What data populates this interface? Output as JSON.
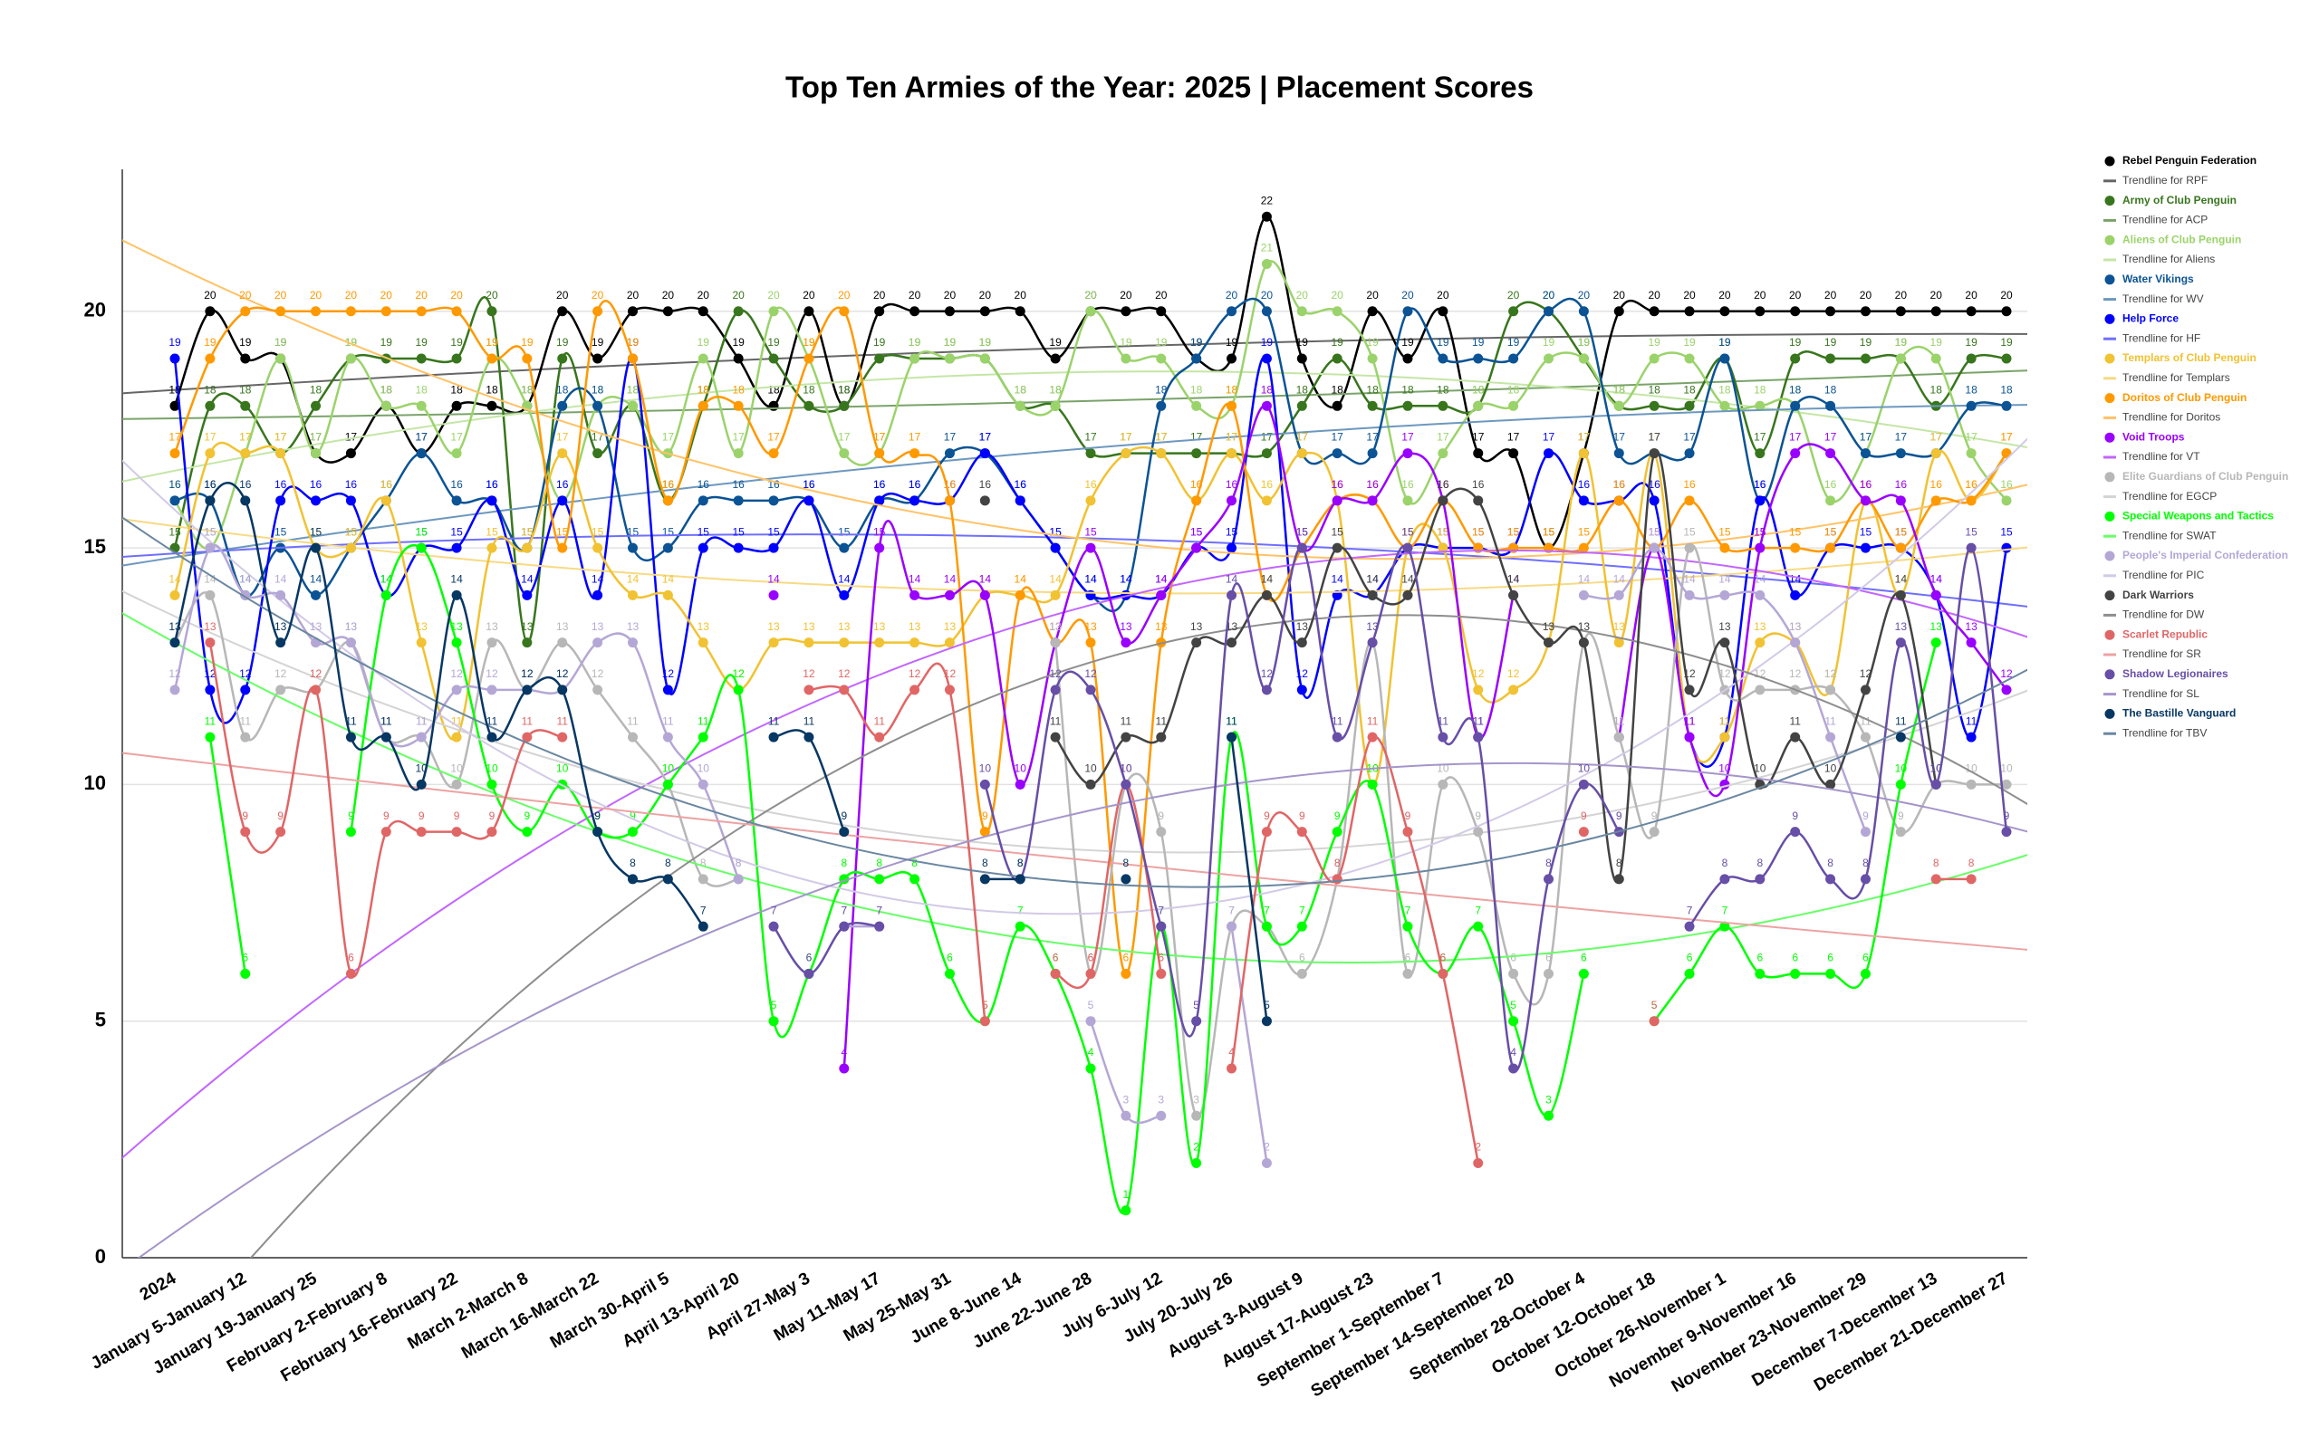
{
  "chart_data": {
    "type": "line",
    "title": "Top Ten Armies of the Year: 2025 | Placement Scores",
    "categories": [
      "2024",
      null,
      "January 5-January 12",
      null,
      "January 19-January 25",
      null,
      "February 2-February 8",
      null,
      "February 16-February 22",
      null,
      "March 2-March 8",
      null,
      "March 16-March 22",
      null,
      "March 30-April 5",
      null,
      "April 13-April 20",
      null,
      "April 27-May 3",
      null,
      "May 11-May 17",
      null,
      "May 25-May 31",
      null,
      "June 8-June 14",
      null,
      "June 22-June 28",
      null,
      "July 6-July 12",
      null,
      "July 20-July 26",
      null,
      "August 3-August 9",
      null,
      "August 17-August 23",
      null,
      "September 1-September 7",
      null,
      "September 14-September 20",
      null,
      "September 28-October 4",
      null,
      "October 12-October 18",
      null,
      "October 26-November 1",
      null,
      "November 9-November 16",
      null,
      "November 23-November 29",
      null,
      "December 7-December 13",
      null,
      "December 21-December 27"
    ],
    "ylim": [
      0,
      23
    ],
    "yticks": [
      0,
      5,
      10,
      15,
      20
    ],
    "grid": true,
    "legend": "right",
    "smooth": true,
    "trendline_degree": 2,
    "series": [
      {
        "name": "Rebel Penguin Federation",
        "color": "#000000",
        "trendline": "Trendline for RPF",
        "trend_color": "#666666",
        "values": [
          18,
          20,
          19,
          19,
          17,
          17,
          18,
          17,
          18,
          18,
          18,
          20,
          19,
          20,
          20,
          20,
          19,
          18,
          20,
          18,
          20,
          20,
          20,
          20,
          20,
          19,
          20,
          20,
          20,
          19,
          19,
          22,
          19,
          18,
          20,
          19,
          20,
          17,
          17,
          15,
          17,
          20,
          20,
          20,
          20,
          20,
          20,
          20,
          20,
          20,
          20,
          20,
          20
        ]
      },
      {
        "name": "Army of Club Penguin",
        "color": "#38761d",
        "trendline": "Trendline for ACP",
        "trend_color": "#7aa36a",
        "values": [
          15,
          18,
          18,
          17,
          18,
          19,
          19,
          19,
          19,
          20,
          13,
          19,
          17,
          18,
          16,
          18,
          20,
          19,
          18,
          18,
          19,
          19,
          19,
          19,
          18,
          18,
          17,
          17,
          17,
          17,
          17,
          17,
          18,
          19,
          18,
          18,
          18,
          18,
          20,
          20,
          19,
          18,
          18,
          18,
          19,
          17,
          19,
          19,
          19,
          19,
          18,
          19,
          19
        ]
      },
      {
        "name": "Aliens of Club Penguin",
        "color": "#9bd36b",
        "trendline": "Trendline for Aliens",
        "trend_color": "#c4e6a6",
        "values": [
          16,
          15,
          17,
          19,
          17,
          19,
          18,
          18,
          17,
          19,
          18,
          16,
          18,
          18,
          17,
          19,
          17,
          20,
          19,
          17,
          17,
          19,
          19,
          19,
          18,
          18,
          20,
          19,
          19,
          18,
          18,
          21,
          20,
          20,
          19,
          16,
          17,
          18,
          18,
          19,
          19,
          18,
          19,
          19,
          18,
          18,
          18,
          16,
          17,
          19,
          19,
          17,
          16
        ]
      },
      {
        "name": "Water Vikings",
        "color": "#0b5394",
        "trendline": "Trendline for WV",
        "trend_color": "#6d98bf",
        "values": [
          16,
          16,
          14,
          15,
          14,
          15,
          16,
          17,
          16,
          16,
          15,
          18,
          18,
          15,
          15,
          16,
          16,
          16,
          16,
          15,
          16,
          16,
          17,
          17,
          16,
          15,
          14,
          14,
          18,
          19,
          20,
          20,
          17,
          17,
          17,
          20,
          19,
          19,
          19,
          20,
          20,
          17,
          17,
          17,
          19,
          16,
          18,
          18,
          17,
          17,
          17,
          18,
          18
        ]
      },
      {
        "name": "Help Force",
        "color": "#0000ff",
        "trendline": "Trendline for HF",
        "trend_color": "#6f6fff",
        "values": [
          19,
          12,
          12,
          16,
          16,
          16,
          14,
          15,
          15,
          16,
          14,
          16,
          14,
          19,
          12,
          15,
          15,
          15,
          16,
          14,
          16,
          16,
          16,
          17,
          16,
          15,
          14,
          14,
          14,
          15,
          15,
          19,
          12,
          14,
          14,
          15,
          15,
          15,
          15,
          17,
          16,
          16,
          16,
          11,
          11,
          16,
          14,
          15,
          15,
          15,
          14,
          11,
          15
        ]
      },
      {
        "name": "Templars of Club Penguin",
        "color": "#f1c232",
        "trendline": "Trendline for Templars",
        "trend_color": "#f7da84",
        "values": [
          14,
          17,
          17,
          17,
          15,
          15,
          16,
          13,
          11,
          15,
          15,
          17,
          15,
          14,
          14,
          13,
          12,
          13,
          13,
          13,
          13,
          13,
          13,
          14,
          14,
          14,
          16,
          17,
          17,
          16,
          17,
          16,
          17,
          16,
          10,
          15,
          15,
          12,
          12,
          13,
          17,
          13,
          17,
          11,
          11,
          13,
          13,
          12,
          16,
          14,
          17,
          16,
          17
        ]
      },
      {
        "name": "Doritos of Club Penguin",
        "color": "#ff9900",
        "trendline": "Trendline for Doritos",
        "trend_color": "#ffc266",
        "values": [
          17,
          19,
          20,
          20,
          20,
          20,
          20,
          20,
          20,
          19,
          19,
          15,
          20,
          19,
          16,
          18,
          18,
          17,
          19,
          20,
          17,
          17,
          16,
          9,
          14,
          13,
          13,
          6,
          13,
          16,
          18,
          14,
          15,
          16,
          16,
          15,
          16,
          15,
          15,
          15,
          15,
          16,
          15,
          16,
          15,
          15,
          15,
          15,
          16,
          15,
          16,
          16,
          17
        ]
      },
      {
        "name": "Void Troops",
        "color": "#9900ff",
        "trendline": "Trendline for VT",
        "trend_color": "#c266ff",
        "values": [
          null,
          null,
          null,
          null,
          null,
          null,
          null,
          null,
          null,
          null,
          null,
          null,
          null,
          null,
          null,
          null,
          null,
          14,
          null,
          4,
          15,
          14,
          14,
          14,
          10,
          13,
          15,
          13,
          14,
          15,
          16,
          18,
          15,
          16,
          16,
          17,
          16,
          11,
          14,
          null,
          null,
          11,
          15,
          11,
          10,
          15,
          17,
          17,
          16,
          16,
          14,
          13,
          12
        ]
      },
      {
        "name": "Elite Guardians of Club Penguin",
        "color": "#b7b7b7",
        "trendline": "Trendline for EGCP",
        "trend_color": "#d4d4d4",
        "values": [
          13,
          14,
          11,
          12,
          12,
          13,
          11,
          11,
          10,
          13,
          12,
          13,
          12,
          11,
          10,
          8,
          8,
          null,
          null,
          null,
          null,
          null,
          null,
          null,
          null,
          13,
          6,
          10,
          9,
          3,
          7,
          7,
          6,
          8,
          13,
          6,
          10,
          9,
          6,
          6,
          13,
          11,
          9,
          15,
          12,
          12,
          12,
          12,
          11,
          9,
          10,
          10,
          10
        ]
      },
      {
        "name": "Special Weapons and Tactics",
        "color": "#00ff00",
        "trendline": "Trendline for SWAT",
        "trend_color": "#66ff66",
        "values": [
          null,
          11,
          6,
          null,
          null,
          9,
          14,
          15,
          13,
          10,
          9,
          10,
          9,
          9,
          10,
          11,
          12,
          5,
          6,
          8,
          8,
          8,
          6,
          5,
          7,
          6,
          4,
          1,
          7,
          2,
          11,
          7,
          7,
          9,
          10,
          7,
          6,
          7,
          5,
          3,
          6,
          null,
          5,
          6,
          7,
          6,
          6,
          6,
          6,
          10,
          13,
          null,
          null
        ]
      },
      {
        "name": "People's Imperial Confederation",
        "color": "#b4a7d6",
        "trendline": "Trendline for PIC",
        "trend_color": "#d2cae6",
        "values": [
          12,
          15,
          14,
          14,
          13,
          13,
          11,
          11,
          12,
          12,
          12,
          12,
          13,
          13,
          11,
          10,
          8,
          null,
          null,
          7,
          7,
          null,
          null,
          null,
          null,
          null,
          5,
          3,
          3,
          null,
          7,
          2,
          null,
          null,
          null,
          null,
          null,
          null,
          null,
          null,
          14,
          14,
          15,
          14,
          14,
          14,
          13,
          11,
          9,
          null,
          null,
          null,
          null
        ]
      },
      {
        "name": "Dark Warriors",
        "color": "#434343",
        "trendline": "Trendline for DW",
        "trend_color": "#8e8e8e",
        "values": [
          null,
          null,
          null,
          null,
          null,
          null,
          null,
          null,
          null,
          null,
          null,
          null,
          null,
          null,
          null,
          null,
          null,
          null,
          null,
          null,
          null,
          null,
          null,
          16,
          null,
          11,
          10,
          11,
          11,
          13,
          13,
          14,
          13,
          15,
          14,
          14,
          16,
          16,
          14,
          13,
          13,
          8,
          17,
          12,
          13,
          10,
          11,
          10,
          12,
          14,
          10,
          null,
          null
        ]
      },
      {
        "name": "Scarlet Republic",
        "color": "#e06666",
        "trendline": "Trendline for SR",
        "trend_color": "#eca3a3",
        "values": [
          null,
          13,
          9,
          9,
          12,
          6,
          9,
          9,
          9,
          9,
          11,
          11,
          null,
          null,
          null,
          null,
          null,
          null,
          12,
          12,
          11,
          12,
          12,
          5,
          null,
          6,
          6,
          10,
          6,
          null,
          4,
          9,
          9,
          8,
          11,
          9,
          6,
          2,
          null,
          null,
          9,
          null,
          5,
          null,
          null,
          null,
          null,
          null,
          null,
          null,
          8,
          8,
          null
        ]
      },
      {
        "name": "Shadow Legionaires",
        "color": "#674ea7",
        "trendline": "Trendline for SL",
        "trend_color": "#a595ca",
        "values": [
          null,
          null,
          null,
          null,
          null,
          null,
          null,
          null,
          null,
          null,
          null,
          null,
          null,
          null,
          null,
          null,
          null,
          7,
          6,
          7,
          7,
          null,
          null,
          10,
          8,
          12,
          12,
          10,
          7,
          5,
          14,
          12,
          15,
          11,
          13,
          15,
          11,
          11,
          4,
          8,
          10,
          9,
          null,
          7,
          8,
          8,
          9,
          8,
          8,
          13,
          10,
          15,
          9
        ]
      },
      {
        "name": "The Bastille Vanguard",
        "color": "#073763",
        "trendline": "Trendline for TBV",
        "trend_color": "#6a87a1",
        "values": [
          13,
          16,
          16,
          13,
          15,
          11,
          11,
          10,
          14,
          11,
          12,
          12,
          9,
          8,
          8,
          7,
          null,
          11,
          11,
          9,
          null,
          null,
          null,
          8,
          8,
          null,
          null,
          8,
          null,
          null,
          11,
          5,
          null,
          null,
          null,
          null,
          null,
          null,
          null,
          null,
          null,
          null,
          null,
          null,
          null,
          null,
          null,
          null,
          null,
          11,
          null,
          null,
          null
        ]
      }
    ]
  }
}
